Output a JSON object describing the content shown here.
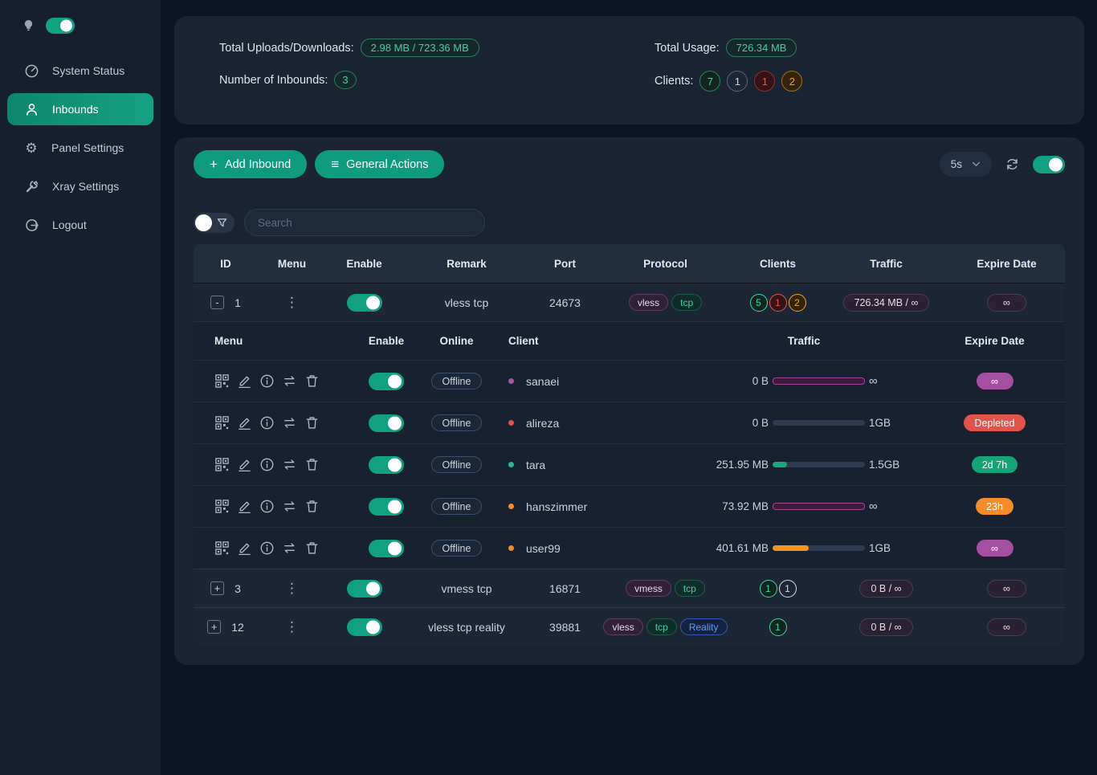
{
  "colors": {
    "accent_green": "#0f9b80",
    "sidebar_active_gradient": [
      "#0d866b",
      "#16a183"
    ],
    "page_bg": "#0d1524",
    "card_bg": "#1b2433",
    "badge_purple": "#a44fa0",
    "badge_red": "#e25449",
    "badge_green": "#16a377",
    "badge_orange": "#f68b28",
    "tag_tcp_text": "#3fd0a5",
    "tag_reality_text": "#5b9cf5"
  },
  "icons": {
    "plus": "+",
    "menu_lines": "≡",
    "dots": "⋮",
    "gear": "⚙"
  },
  "sidebar": {
    "theme_toggle_on": true,
    "items": [
      {
        "label": "System Status"
      },
      {
        "label": "Inbounds"
      },
      {
        "label": "Panel Settings"
      },
      {
        "label": "Xray Settings"
      },
      {
        "label": "Logout"
      }
    ]
  },
  "stats": {
    "total_uploads_downloads_label": "Total Uploads/Downloads:",
    "total_uploads_downloads_value": "2.98 MB / 723.36 MB",
    "number_of_inbounds_label": "Number of Inbounds:",
    "number_of_inbounds_value": "3",
    "total_usage_label": "Total Usage:",
    "total_usage_value": "726.34 MB",
    "clients_label": "Clients:",
    "clients_badges": [
      {
        "value": "7",
        "color": "green"
      },
      {
        "value": "1",
        "color": "gray"
      },
      {
        "value": "1",
        "color": "red"
      },
      {
        "value": "2",
        "color": "orange"
      }
    ]
  },
  "toolbar": {
    "add_inbound_label": "Add Inbound",
    "general_actions_label": "General Actions",
    "refresh_interval": "5s",
    "auto_refresh_on": true
  },
  "search": {
    "placeholder": "Search"
  },
  "table": {
    "headers": [
      "ID",
      "Menu",
      "Enable",
      "Remark",
      "Port",
      "Protocol",
      "Clients",
      "Traffic",
      "Expire Date"
    ],
    "rows": [
      {
        "expander": "-",
        "id": "1",
        "enabled": true,
        "remark": "vless tcp",
        "port": "24673",
        "protocols": [
          "vless",
          "tcp"
        ],
        "clients": [
          {
            "value": "5",
            "color": "green"
          },
          {
            "value": "1",
            "color": "red"
          },
          {
            "value": "2",
            "color": "orange"
          }
        ],
        "traffic": "726.34 MB / ∞",
        "expire": "∞",
        "expanded": true
      },
      {
        "expander": "+",
        "id": "3",
        "enabled": true,
        "remark": "vmess tcp",
        "port": "16871",
        "protocols": [
          "vmess",
          "tcp"
        ],
        "clients": [
          {
            "value": "1",
            "color": "green"
          },
          {
            "value": "1",
            "color": "gray"
          }
        ],
        "traffic": "0 B / ∞",
        "expire": "∞",
        "expanded": false
      },
      {
        "expander": "+",
        "id": "12",
        "enabled": true,
        "remark": "vless tcp reality",
        "port": "39881",
        "protocols": [
          "vless",
          "tcp",
          "Reality"
        ],
        "clients": [
          {
            "value": "1",
            "color": "green"
          }
        ],
        "traffic": "0 B / ∞",
        "expire": "∞",
        "expanded": false
      }
    ]
  },
  "subtable": {
    "headers": [
      "Menu",
      "Enable",
      "Online",
      "Client",
      "Traffic",
      "Expire Date"
    ],
    "clients": [
      {
        "name": "sanaei",
        "status": "Offline",
        "enabled": true,
        "dot_color": "#a855a0",
        "used": "0 B",
        "limit": "∞",
        "bar": {
          "type": "infinite"
        },
        "expire": {
          "label": "∞",
          "color": "purple"
        }
      },
      {
        "name": "alireza",
        "status": "Offline",
        "enabled": true,
        "dot_color": "#e05252",
        "used": "0 B",
        "limit": "1GB",
        "bar": {
          "type": "progress",
          "percent": 0,
          "color": "gray"
        },
        "expire": {
          "label": "Depleted",
          "color": "red"
        }
      },
      {
        "name": "tara",
        "status": "Offline",
        "enabled": true,
        "dot_color": "#2bb39a",
        "used": "251.95 MB",
        "limit": "1.5GB",
        "bar": {
          "type": "progress",
          "percent": 16,
          "color": "green"
        },
        "expire": {
          "label": "2d 7h",
          "color": "green"
        }
      },
      {
        "name": "hanszimmer",
        "status": "Offline",
        "enabled": true,
        "dot_color": "#f08a2c",
        "used": "73.92 MB",
        "limit": "∞",
        "bar": {
          "type": "infinite"
        },
        "expire": {
          "label": "23h",
          "color": "orange"
        }
      },
      {
        "name": "user99",
        "status": "Offline",
        "enabled": true,
        "dot_color": "#f08a2c",
        "used": "401.61 MB",
        "limit": "1GB",
        "bar": {
          "type": "progress",
          "percent": 39,
          "color": "orange"
        },
        "expire": {
          "label": "∞",
          "color": "purple"
        }
      }
    ]
  }
}
